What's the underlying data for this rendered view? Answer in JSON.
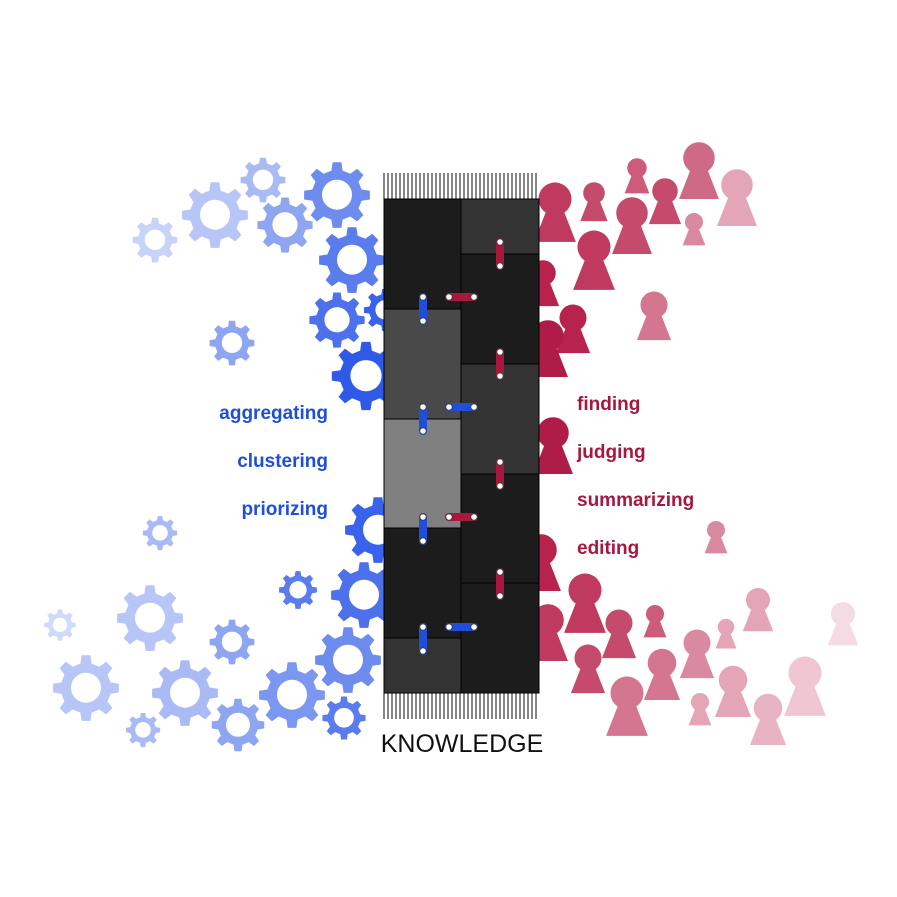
{
  "title": "KNOWLEDGE",
  "left_labels": [
    "aggregating",
    "clustering",
    "priorizing"
  ],
  "right_labels": [
    "finding",
    "judging",
    "summarizing",
    "editing"
  ],
  "colors": {
    "machine_accent": "#1f4fd8",
    "human_accent": "#a8173d",
    "title": "#111111"
  },
  "icons": {
    "left": "gear-icon",
    "right": "person-pawn-icon",
    "center": "woven-knowledge-block"
  }
}
